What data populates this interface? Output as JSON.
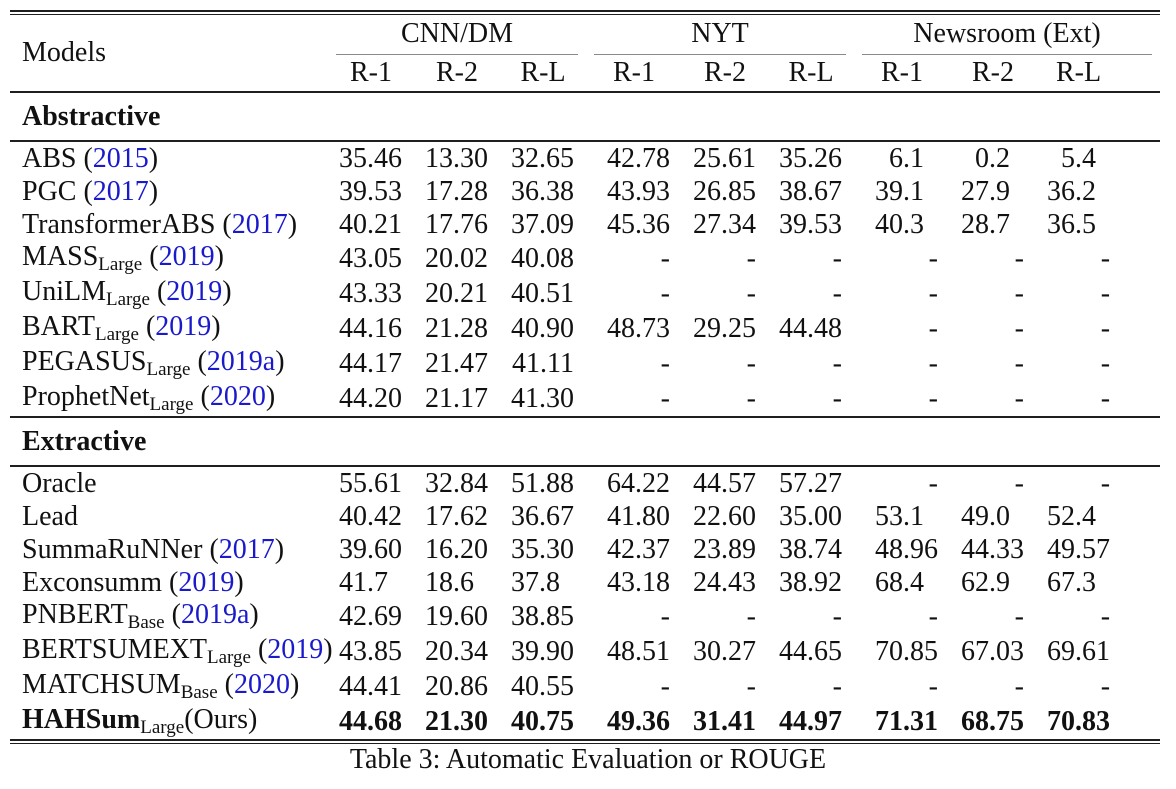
{
  "table": {
    "caption": "Table 3: Automatic Evaluation or ROUGE",
    "models_header": "Models",
    "groups": [
      {
        "label": "CNN/DM",
        "metrics": [
          "R-1",
          "R-2",
          "R-L"
        ]
      },
      {
        "label": "NYT",
        "metrics": [
          "R-1",
          "R-2",
          "R-L"
        ]
      },
      {
        "label": "Newsroom (Ext)",
        "metrics": [
          "R-1",
          "R-2",
          "R-L"
        ]
      }
    ],
    "sections": [
      {
        "label": "Abstractive",
        "rows": [
          {
            "name": "ABS",
            "sub": null,
            "year": "2015",
            "suffix": null,
            "bold": false,
            "values": [
              "35.46",
              "13.30",
              "32.65",
              "42.78",
              "25.61",
              "35.26",
              "6.1",
              "0.2",
              "5.4"
            ]
          },
          {
            "name": "PGC",
            "sub": null,
            "year": "2017",
            "suffix": null,
            "bold": false,
            "values": [
              "39.53",
              "17.28",
              "36.38",
              "43.93",
              "26.85",
              "38.67",
              "39.1",
              "27.9",
              "36.2"
            ]
          },
          {
            "name": "TransformerABS",
            "sub": null,
            "year": "2017",
            "suffix": null,
            "bold": false,
            "values": [
              "40.21",
              "17.76",
              "37.09",
              "45.36",
              "27.34",
              "39.53",
              "40.3",
              "28.7",
              "36.5"
            ]
          },
          {
            "name": "MASS",
            "sub": "Large",
            "year": "2019",
            "suffix": null,
            "bold": false,
            "values": [
              "43.05",
              "20.02",
              "40.08",
              "-",
              "-",
              "-",
              "-",
              "-",
              "-"
            ]
          },
          {
            "name": "UniLM",
            "sub": "Large",
            "year": "2019",
            "suffix": null,
            "bold": false,
            "values": [
              "43.33",
              "20.21",
              "40.51",
              "-",
              "-",
              "-",
              "-",
              "-",
              "-"
            ]
          },
          {
            "name": "BART",
            "sub": "Large",
            "year": "2019",
            "suffix": null,
            "bold": false,
            "values": [
              "44.16",
              "21.28",
              "40.90",
              "48.73",
              "29.25",
              "44.48",
              "-",
              "-",
              "-"
            ]
          },
          {
            "name": "PEGASUS",
            "sub": "Large",
            "year": "2019a",
            "suffix": null,
            "bold": false,
            "values": [
              "44.17",
              "21.47",
              "41.11",
              "-",
              "-",
              "-",
              "-",
              "-",
              "-"
            ]
          },
          {
            "name": "ProphetNet",
            "sub": "Large",
            "year": "2020",
            "suffix": null,
            "bold": false,
            "values": [
              "44.20",
              "21.17",
              "41.30",
              "-",
              "-",
              "-",
              "-",
              "-",
              "-"
            ]
          }
        ]
      },
      {
        "label": "Extractive",
        "rows": [
          {
            "name": "Oracle",
            "sub": null,
            "year": null,
            "suffix": null,
            "bold": false,
            "values": [
              "55.61",
              "32.84",
              "51.88",
              "64.22",
              "44.57",
              "57.27",
              "-",
              "-",
              "-"
            ]
          },
          {
            "name": "Lead",
            "sub": null,
            "year": null,
            "suffix": null,
            "bold": false,
            "values": [
              "40.42",
              "17.62",
              "36.67",
              "41.80",
              "22.60",
              "35.00",
              "53.1",
              "49.0",
              "52.4"
            ]
          },
          {
            "name": "SummaRuNNer",
            "sub": null,
            "year": "2017",
            "suffix": null,
            "bold": false,
            "values": [
              "39.60",
              "16.20",
              "35.30",
              "42.37",
              "23.89",
              "38.74",
              "48.96",
              "44.33",
              "49.57"
            ]
          },
          {
            "name": "Exconsumm",
            "sub": null,
            "year": "2019",
            "suffix": null,
            "bold": false,
            "values": [
              "41.7",
              "18.6",
              "37.8",
              "43.18",
              "24.43",
              "38.92",
              "68.4",
              "62.9",
              "67.3"
            ]
          },
          {
            "name": "PNBERT",
            "sub": "Base",
            "year": "2019a",
            "suffix": null,
            "bold": false,
            "values": [
              "42.69",
              "19.60",
              "38.85",
              "-",
              "-",
              "-",
              "-",
              "-",
              "-"
            ]
          },
          {
            "name": "BERTSUMEXT",
            "sub": "Large",
            "year": "2019",
            "suffix": null,
            "bold": false,
            "values": [
              "43.85",
              "20.34",
              "39.90",
              "48.51",
              "30.27",
              "44.65",
              "70.85",
              "67.03",
              "69.61"
            ]
          },
          {
            "name": "MATCHSUM",
            "sub": "Base",
            "year": "2020",
            "suffix": null,
            "bold": false,
            "values": [
              "44.41",
              "20.86",
              "40.55",
              "-",
              "-",
              "-",
              "-",
              "-",
              "-"
            ]
          },
          {
            "name": "HAHSum",
            "sub": "Large",
            "year": null,
            "suffix": "(Ours)",
            "bold": true,
            "values": [
              "44.68",
              "21.30",
              "40.75",
              "49.36",
              "31.41",
              "44.97",
              "71.31",
              "68.75",
              "70.83"
            ]
          }
        ]
      }
    ]
  },
  "colors": {
    "citation_blue": "#1a1acc",
    "text": "#111111",
    "rule": "#1f1f1f",
    "cmidrule": "#8a8a8a",
    "background": "#ffffff"
  }
}
